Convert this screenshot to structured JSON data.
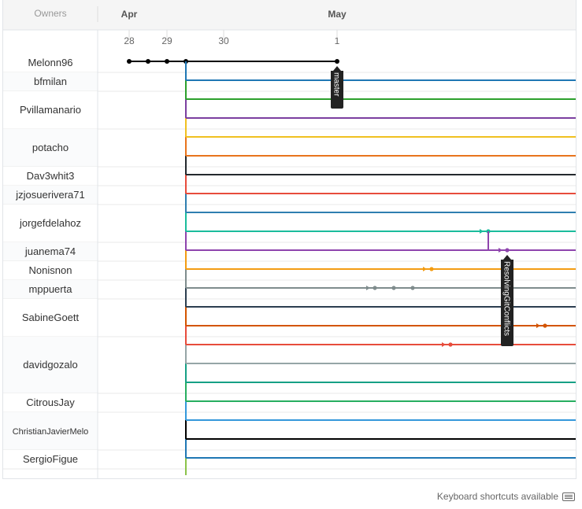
{
  "header": {
    "owners_label": "Owners",
    "months": [
      {
        "label": "Apr",
        "day_index": 0
      },
      {
        "label": "May",
        "day_index": 4
      }
    ],
    "days": [
      "28",
      "29",
      "30",
      "1"
    ]
  },
  "owners": [
    {
      "name": "Melonn96",
      "lanes": 1
    },
    {
      "name": "bfmilan",
      "lanes": 1
    },
    {
      "name": "Pvillamanario",
      "lanes": 2
    },
    {
      "name": "potacho",
      "lanes": 2
    },
    {
      "name": "Dav3whit3",
      "lanes": 1
    },
    {
      "name": "jzjosuerivera71",
      "lanes": 1
    },
    {
      "name": "jorgefdelahoz",
      "lanes": 2
    },
    {
      "name": "juanema74",
      "lanes": 1
    },
    {
      "name": "Nonisnon",
      "lanes": 1
    },
    {
      "name": "mppuerta",
      "lanes": 1
    },
    {
      "name": "SabineGoett",
      "lanes": 2
    },
    {
      "name": "davidgozalo",
      "lanes": 3
    },
    {
      "name": "CitrousJay",
      "lanes": 1
    },
    {
      "name": "ChristianJavierMelo",
      "lanes": 2
    },
    {
      "name": "SergioFigue",
      "lanes": 1
    }
  ],
  "branch_labels": [
    {
      "text": "master",
      "lane": 0
    },
    {
      "text": "ResolvingGitConflicts",
      "lane": 9
    }
  ],
  "lane_colors": [
    "#000000",
    "#1f77b4",
    "#2ca02c",
    "#7b3fa0",
    "#f0c020",
    "#e8741c",
    "#24292e",
    "#e74c3c",
    "#2f7fb0",
    "#1abc9c",
    "#8e44ad",
    "#f39c12",
    "#7f8c8d",
    "#2c3e50",
    "#d35400",
    "#e74c3c",
    "#95a5a6",
    "#16a085",
    "#27ae60",
    "#3498db"
  ],
  "footer": {
    "shortcuts_text": "Keyboard shortcuts available",
    "keyboard_icon": "keyboard-icon"
  }
}
